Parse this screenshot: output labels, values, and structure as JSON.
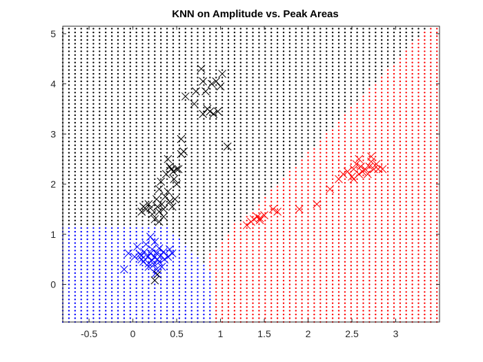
{
  "chart_data": {
    "type": "scatter",
    "title": "KNN on Amplitude vs. Peak Areas",
    "xlabel": "",
    "ylabel": "",
    "xlim": [
      -0.8,
      3.5
    ],
    "ylim": [
      -0.75,
      5.15
    ],
    "x_ticks": [
      -0.5,
      0,
      0.5,
      1,
      1.5,
      2,
      2.5,
      3
    ],
    "y_ticks": [
      0,
      1,
      2,
      3,
      4,
      5
    ],
    "x_tick_labels": [
      "-0.5",
      "0",
      "0.5",
      "1",
      "1.5",
      "2",
      "2.5",
      "3"
    ],
    "y_tick_labels": [
      "0",
      "1",
      "2",
      "3",
      "4",
      "5"
    ],
    "grid": false,
    "background_grid": {
      "description_colors": {
        "class_1": "#0000ff",
        "class_2": "#000000",
        "class_3": "#ff0000"
      },
      "x_start": -0.8,
      "x_end": 3.5,
      "x_step": 0.07,
      "y_start": -0.75,
      "y_end": 5.15,
      "y_step": 0.075
    },
    "series": [
      {
        "color": "#0000ff",
        "marker": "x",
        "points": [
          [
            -0.1,
            0.3
          ],
          [
            -0.05,
            0.62
          ],
          [
            0.02,
            0.55
          ],
          [
            0.05,
            0.75
          ],
          [
            0.08,
            0.6
          ],
          [
            0.1,
            0.5
          ],
          [
            0.12,
            0.45
          ],
          [
            0.13,
            0.65
          ],
          [
            0.15,
            0.8
          ],
          [
            0.17,
            0.55
          ],
          [
            0.18,
            0.35
          ],
          [
            0.2,
            0.95
          ],
          [
            0.2,
            0.62
          ],
          [
            0.22,
            0.7
          ],
          [
            0.22,
            0.48
          ],
          [
            0.24,
            0.4
          ],
          [
            0.25,
            0.55
          ],
          [
            0.25,
            0.85
          ],
          [
            0.27,
            0.3
          ],
          [
            0.27,
            0.62
          ],
          [
            0.28,
            0.5
          ],
          [
            0.3,
            0.72
          ],
          [
            0.3,
            0.45
          ],
          [
            0.32,
            0.58
          ],
          [
            0.33,
            0.35
          ],
          [
            0.35,
            0.65
          ],
          [
            0.36,
            0.5
          ],
          [
            0.4,
            0.55
          ],
          [
            0.42,
            0.7
          ],
          [
            0.45,
            0.62
          ],
          [
            0.1,
            0.58
          ],
          [
            0.18,
            0.42
          ],
          [
            0.26,
            0.22
          ]
        ]
      },
      {
        "color": "#000000",
        "marker": "x",
        "points": [
          [
            0.1,
            1.45
          ],
          [
            0.12,
            1.55
          ],
          [
            0.15,
            1.5
          ],
          [
            0.18,
            1.6
          ],
          [
            0.2,
            1.52
          ],
          [
            0.22,
            1.4
          ],
          [
            0.25,
            1.3
          ],
          [
            0.27,
            1.7
          ],
          [
            0.28,
            1.55
          ],
          [
            0.3,
            1.45
          ],
          [
            0.3,
            1.9
          ],
          [
            0.32,
            2.05
          ],
          [
            0.33,
            1.6
          ],
          [
            0.35,
            1.5
          ],
          [
            0.37,
            1.75
          ],
          [
            0.38,
            2.2
          ],
          [
            0.4,
            1.85
          ],
          [
            0.4,
            2.5
          ],
          [
            0.42,
            1.65
          ],
          [
            0.44,
            2.3
          ],
          [
            0.45,
            1.55
          ],
          [
            0.46,
            2.25
          ],
          [
            0.47,
            2.1
          ],
          [
            0.48,
            1.7
          ],
          [
            0.5,
            2.3
          ],
          [
            0.5,
            2.0
          ],
          [
            0.52,
            2.3
          ],
          [
            0.55,
            2.6
          ],
          [
            0.55,
            2.9
          ],
          [
            0.58,
            2.65
          ],
          [
            0.6,
            3.75
          ],
          [
            0.7,
            3.6
          ],
          [
            0.72,
            3.85
          ],
          [
            0.78,
            4.3
          ],
          [
            0.8,
            4.05
          ],
          [
            0.8,
            3.4
          ],
          [
            0.83,
            3.85
          ],
          [
            0.85,
            3.5
          ],
          [
            0.88,
            3.45
          ],
          [
            0.9,
            4.0
          ],
          [
            0.92,
            3.4
          ],
          [
            0.95,
            4.05
          ],
          [
            0.97,
            3.45
          ],
          [
            1.0,
            3.95
          ],
          [
            1.02,
            4.2
          ],
          [
            1.08,
            2.75
          ],
          [
            0.25,
            0.08
          ],
          [
            0.28,
            0.2
          ],
          [
            0.3,
            1.25
          ],
          [
            0.35,
            1.35
          ],
          [
            0.42,
            2.35
          ]
        ]
      },
      {
        "color": "#ff0000",
        "marker": "x",
        "points": [
          [
            1.3,
            1.18
          ],
          [
            1.35,
            1.25
          ],
          [
            1.38,
            1.3
          ],
          [
            1.42,
            1.35
          ],
          [
            1.45,
            1.32
          ],
          [
            1.5,
            1.38
          ],
          [
            1.6,
            1.5
          ],
          [
            1.65,
            1.45
          ],
          [
            1.9,
            1.5
          ],
          [
            2.1,
            1.6
          ],
          [
            2.25,
            1.9
          ],
          [
            2.35,
            2.1
          ],
          [
            2.4,
            2.2
          ],
          [
            2.45,
            2.25
          ],
          [
            2.5,
            2.15
          ],
          [
            2.52,
            2.3
          ],
          [
            2.55,
            2.4
          ],
          [
            2.58,
            2.2
          ],
          [
            2.6,
            2.35
          ],
          [
            2.62,
            2.25
          ],
          [
            2.65,
            2.3
          ],
          [
            2.68,
            2.2
          ],
          [
            2.7,
            2.35
          ],
          [
            2.72,
            2.45
          ],
          [
            2.75,
            2.3
          ],
          [
            2.78,
            2.4
          ],
          [
            2.8,
            2.3
          ],
          [
            2.85,
            2.3
          ],
          [
            2.58,
            2.5
          ],
          [
            2.52,
            2.1
          ],
          [
            2.72,
            2.55
          ],
          [
            1.45,
            1.28
          ]
        ]
      }
    ]
  }
}
